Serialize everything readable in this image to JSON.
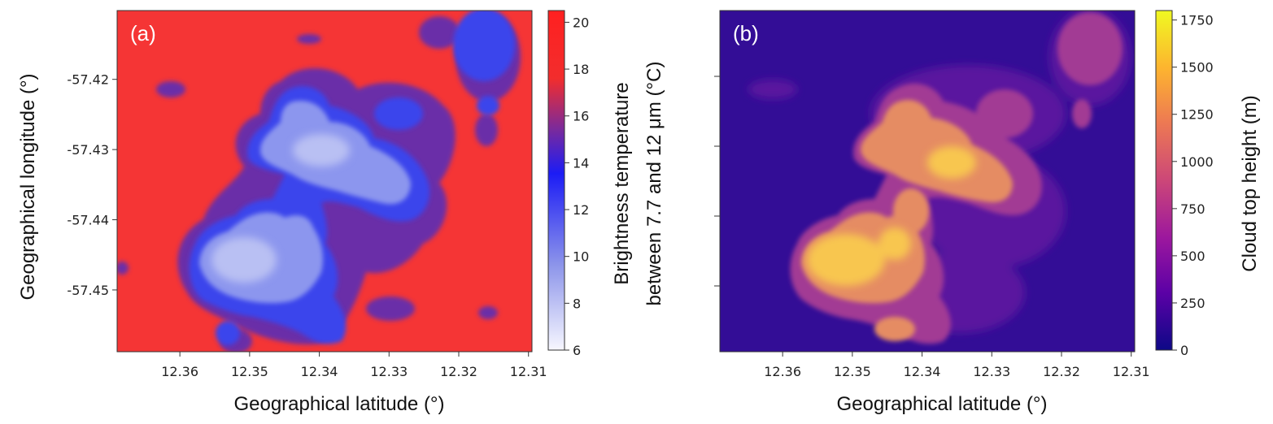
{
  "chart_data": [
    {
      "type": "heatmap",
      "panel_label": "(a)",
      "xlabel": "Geographical latitude (°)",
      "ylabel": "Geographical longitude (°)",
      "x_ticks": [
        "12.36",
        "12.35",
        "12.34",
        "12.33",
        "12.32",
        "12.31"
      ],
      "y_ticks": [
        "-57.42",
        "-57.43",
        "-57.44",
        "-57.45"
      ],
      "xlim": [
        12.369,
        12.3095
      ],
      "ylim": [
        -57.4588,
        -57.4102
      ],
      "colorbar": {
        "label_line1": "Brightness temperature",
        "label_line2": "between 7.7 and 12 μm (°C)",
        "range": [
          6,
          20.5
        ],
        "ticks": [
          "6",
          "8",
          "10",
          "12",
          "14",
          "16",
          "18",
          "20"
        ],
        "colormap": "bwr_reversed",
        "colors": [
          "#f7f7ff",
          "#8d95ea",
          "#1c1cf5",
          "#7a2a9c",
          "#f22d2d",
          "#ff2020"
        ]
      },
      "background_color": "#f53535",
      "cloud_color": "#4d5bea",
      "cloud_core_color": "#b8c0f2"
    },
    {
      "type": "heatmap",
      "panel_label": "(b)",
      "xlabel": "Geographical latitude (°)",
      "ylabel": "",
      "x_ticks": [
        "12.36",
        "12.35",
        "12.34",
        "12.33",
        "12.32",
        "12.31"
      ],
      "y_ticks": [],
      "xlim": [
        12.369,
        12.3095
      ],
      "ylim": [
        -57.4588,
        -57.4102
      ],
      "colorbar": {
        "label": "Cloud top height (m)",
        "range": [
          0,
          1800
        ],
        "ticks": [
          "0",
          "250",
          "500",
          "750",
          "1000",
          "1250",
          "1500",
          "1750"
        ],
        "colormap": "plasma",
        "colors": [
          "#0d0887",
          "#5c01a6",
          "#9c179e",
          "#cc4778",
          "#ed7953",
          "#fdb42f",
          "#f0f921"
        ]
      },
      "background_color": "#330d96",
      "cloud_color": "#e3856a",
      "cloud_core_color": "#f8c45a"
    }
  ]
}
